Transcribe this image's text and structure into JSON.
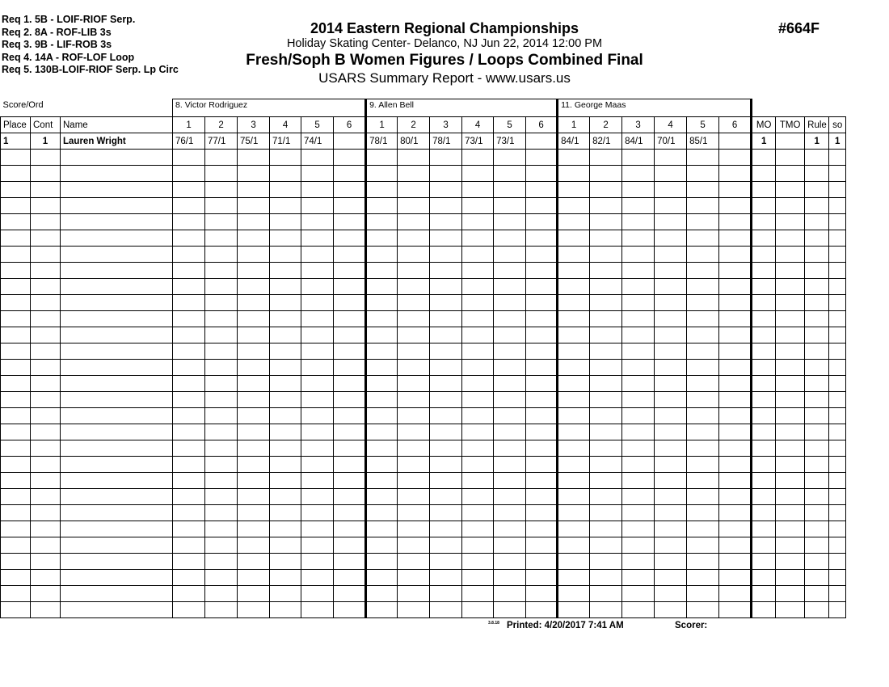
{
  "requirements": [
    "Req  1.  5B - LOIF-RIOF Serp.",
    "Req  2.  8A - ROF-LIB 3s",
    "Req  3.  9B - LIF-ROB 3s",
    "Req  4.  14A - ROF-LOF Loop",
    "Req  5.  130B-LOIF-RIOF Serp. Lp Circ"
  ],
  "header": {
    "title": "2014 Eastern Regional Championships",
    "venue": "Holiday Skating Center- Delanco, NJ  Jun 22, 2014  12:00 PM",
    "event": "Fresh/Soph B Women Figures / Loops Combined Final",
    "report": "USARS Summary Report - www.usars.us",
    "code": "#664F"
  },
  "table": {
    "score_ord_label": "Score/Ord",
    "judges": [
      "8.  Victor Rodriguez",
      "9.  Allen Bell",
      "11.  George Maas"
    ],
    "columns": {
      "place": "Place",
      "cont": "Cont",
      "name": "Name",
      "figures": [
        "1",
        "2",
        "3",
        "4",
        "5",
        "6"
      ],
      "mo": "MO",
      "tmo": "TMO",
      "rule": "Rule",
      "so": "so"
    },
    "rows": [
      {
        "place": "1",
        "cont": "1",
        "name": "Lauren Wright",
        "scores": [
          [
            "76/1",
            "77/1",
            "75/1",
            "71/1",
            "74/1",
            ""
          ],
          [
            "78/1",
            "80/1",
            "78/1",
            "73/1",
            "73/1",
            ""
          ],
          [
            "84/1",
            "82/1",
            "84/1",
            "70/1",
            "85/1",
            ""
          ]
        ],
        "mo": "1",
        "tmo": "",
        "rule": "1",
        "so": "1"
      }
    ],
    "empty_rows": 29
  },
  "footer": {
    "version": "3.8.18",
    "printed": "Printed:  4/20/2017  7:41 AM",
    "scorer": "Scorer:"
  }
}
